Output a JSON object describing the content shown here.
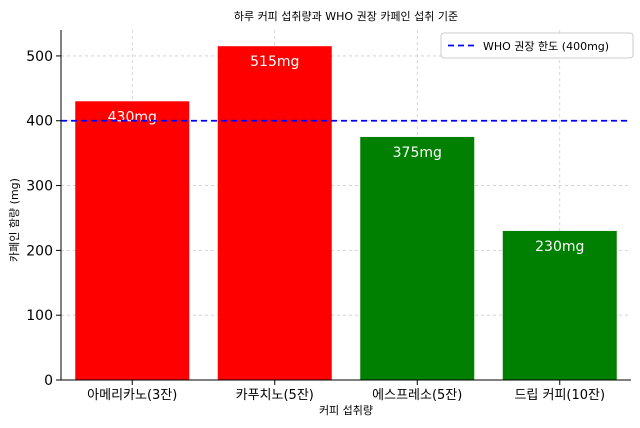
{
  "chart_data": {
    "type": "bar",
    "title": "하루 커피 섭취량과 WHO 권장 카페인 섭취 기준",
    "xlabel": "커피 섭취량",
    "ylabel": "카페인 함량 (mg)",
    "categories": [
      "아메리카노(3잔)",
      "카푸치노(5잔)",
      "에스프레소(5잔)",
      "드립 커피(10잔)"
    ],
    "values": [
      430,
      515,
      375,
      230
    ],
    "value_labels": [
      "430mg",
      "515mg",
      "375mg",
      "230mg"
    ],
    "bar_colors": [
      "#ff0000",
      "#ff0000",
      "#008000",
      "#008000"
    ],
    "ylim": [
      0,
      540
    ],
    "yticks": [
      0,
      100,
      200,
      300,
      400,
      500
    ],
    "grid": true,
    "reference_line": {
      "value": 400,
      "label": "WHO 권장 한도 (400mg)",
      "color": "#0000ff",
      "style": "dashed"
    },
    "legend_position": "top-right"
  }
}
